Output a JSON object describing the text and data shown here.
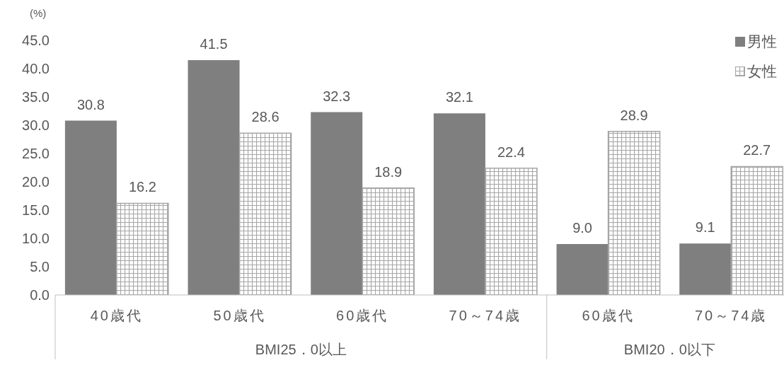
{
  "chart_data": {
    "type": "bar",
    "ylabel": "(%)",
    "categories": [
      "40歳代",
      "50歳代",
      "60歳代",
      "70～74歳",
      "60歳代",
      "70～74歳"
    ],
    "series": [
      {
        "name": "男性",
        "color": "#7f7f7f",
        "values": [
          30.8,
          41.5,
          32.3,
          32.1,
          9.0,
          9.1
        ],
        "value_labels": [
          "30.8",
          "41.5",
          "32.3",
          "32.1",
          "9.0",
          "9.1"
        ]
      },
      {
        "name": "女性",
        "color": "#a6a6a6",
        "values": [
          16.2,
          28.6,
          18.9,
          22.4,
          28.9,
          22.7
        ],
        "value_labels": [
          "16.2",
          "28.6",
          "18.9",
          "22.4",
          "28.9",
          "22.7"
        ]
      }
    ],
    "ylim": [
      0,
      45
    ],
    "yticks": [
      {
        "value": 0,
        "label": "0.0"
      },
      {
        "value": 5,
        "label": "5.0"
      },
      {
        "value": 10,
        "label": "10.0"
      },
      {
        "value": 15,
        "label": "15.0"
      },
      {
        "value": 20,
        "label": "20.0"
      },
      {
        "value": 25,
        "label": "25.0"
      },
      {
        "value": 30,
        "label": "30.0"
      },
      {
        "value": 35,
        "label": "35.0"
      },
      {
        "value": 40,
        "label": "40.0"
      },
      {
        "value": 45,
        "label": "45.0"
      }
    ],
    "annotations": [
      "BMI25．0以上",
      "BMI20．0以下"
    ],
    "legend": "top right",
    "grid": false
  }
}
